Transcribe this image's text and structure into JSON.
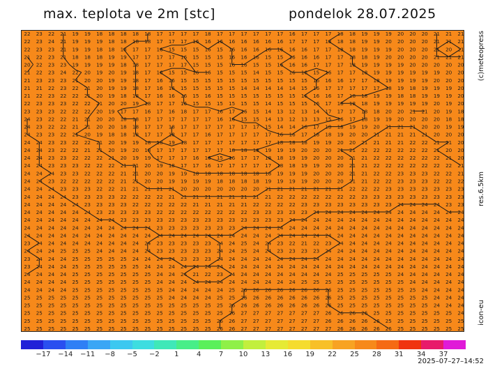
{
  "header": {
    "title": "max. teplota ve 2m [stc]",
    "date": "pondelok 28.07.2025"
  },
  "side_labels": {
    "copyright": "(c)meteopress",
    "resolution": "res.6.5km",
    "model": "icon-eu"
  },
  "timestamp": "2025–07–27–14:52",
  "colorbar": {
    "ticks": [
      "−17",
      "−14",
      "−11",
      "−8",
      "−5",
      "−2",
      "1",
      "4",
      "7",
      "10",
      "13",
      "16",
      "19",
      "22",
      "25",
      "28",
      "31",
      "34",
      "37"
    ],
    "colors": [
      "#2020d8",
      "#2a4ff0",
      "#2f7ff5",
      "#3aa6f5",
      "#3cc8f0",
      "#3ddde0",
      "#3fe8b8",
      "#48ee88",
      "#5af05a",
      "#8ff048",
      "#c2ef3d",
      "#e6ea35",
      "#f5dc2e",
      "#f8c028",
      "#f8a322",
      "#f7891a",
      "#f56a14",
      "#f0330f",
      "#e81a6a",
      "#e01ad8"
    ],
    "min_value": -20,
    "max_value": 40
  },
  "map": {
    "fill_color": "#f7891a",
    "contour_color": "#1a1a1a",
    "grid": [
      "22 23 22 21 19 19 18 18 18 18 18 17 17 17 17 18 17 17 17 17 17 17 16 17 17 17 18 18 19 19 19 20 20 20 21 21 21",
      "22 23 24 21 19 19 19 18 18 18 18 17 17 17 16 16 16 16 16 16 16 16 17 17 17 18 18 18 19 19 20 20 20 20 21 21 21",
      "22 23 23 21 19 19 18 18 18 17 17 16 15 15 15 16 15 16 16 16 16 16 16 16 17 17 18 18 19 19 19 20 20 20 21 20 21",
      "21 22 23 21 18 18 18 19 19 17 17 17 17 16 15 15 15 16 16 16 15 15 16 16 16 17 17 18 18 19 20 20 20 20 21 21 21",
      "20 22 23 23 19 19 19 19 18 18 17 17 17 17 15 15 15 16 16 15 15 16 16 16 17 17 17 18 19 19 19 19 20 20 20 20 20",
      "21 22 23 24 22 20 19 20 19 18 17 16 15 15 16 16 15 15 15 14 15 15 16 16 15 16 17 17 18 19 19 19 19 19 19 20 20",
      "21 23 23 23 21 20 20 19 19 18 17 16 16 15 15 15 15 15 15 15 15 15 15 15 16 16 16 17 17 18 19 19 19 19 20 20 20",
      "21 21 22 23 22 21 20 19 19 18 17 16 16 15 15 15 15 15 14 14 14 14 14 15 16 17 17 17 17 17 18 19 18 19 19 19 20",
      "21 22 23 22 22 21 20 19 18 18 17 16 16 16 15 16 15 15 15 15 15 15 15 16 16 16 17 18 18 19 19 18 18 19 19 19 20",
      "22 23 23 23 22 22 21 20 20 19 18 17 17 16 15 15 15 15 15 15 14 15 15 15 16 17 18 18 18 19 19 19 19 19 20 19 20",
      "23 23 23 22 22 22 20 19 17 17 16 17 16 18 17 17 16 17 16 15 14 13 12 13 14 17 17 17 18 18 20 20 21 21 20 19 18",
      "24 23 22 22 21 21 20 20 18 18 17 17 17 17 17 17 16 16 15 15 14 13 12 13 13 15 16 17 18 19 19 20 20 20 20 18 18",
      "24 23 22 22 21 21 20 20 18 18 17 17 18 17 17 17 17 17 17 17 15 14 14 16 17 18 18 19 19 20 21 21 21 20 20 19 19",
      "24 23 23 22 21 20 19 18 18 18 17 17 18 17 17 16 17 17 17 17 17 16 16 17 18 18 19 20 20 21 21 21 21 21 20 20 20",
      "24 24 23 23 22 22 21 20 19 19 18 18 19 18 17 17 17 17 17 17 17 18 18 18 19 19 20 20 21 21 21 21 22 22 21 21 20",
      "24 24 23 22 22 21 21 20 19 20 18 17 17 17 17 17 17 18 18 18 19 19 19 20 20 20 21 21 22 22 22 22 22 22 21 20 20",
      "24 24 23 23 22 22 22 21 20 19 19 17 17 17 16 16 15 16 17 17 18 18 19 19 20 20 20 21 21 22 22 22 22 22 22 21 20",
      "24 24 23 23 23 22 22 22 21 21 20 19 18 17 17 16 17 17 17 17 17 18 18 19 19 20 20 21 21 22 22 22 22 22 22 22 21",
      "24 24 24 23 23 22 22 22 21 21 20 20 19 19 18 18 18 18 18 18 18 19 19 19 20 20 20 21 21 22 22 23 23 23 22 22 21",
      "24 24 23 22 22 22 22 22 21 21 20 20 19 19 19 19 18 18 18 18 19 19 19 19 20 20 20 21 21 22 22 23 23 23 22 22 22",
      "24 24 24 23 23 23 22 22 21 21 21 21 21 20 20 20 20 20 20 20 21 21 21 21 21 21 21 22 22 22 23 23 23 23 23 23 23",
      "24 24 24 24 23 23 23 23 22 22 22 22 21 21 21 21 21 21 21 21 21 22 22 22 22 22 22 22 23 23 23 23 23 23 23 23 23",
      "24 24 24 24 24 23 23 23 23 22 22 22 22 22 21 21 21 21 21 22 22 22 22 23 23 23 23 23 23 23 23 24 24 24 24 23 23",
      "24 24 24 24 24 24 23 23 23 23 23 22 22 22 22 22 22 22 22 23 23 23 23 23 24 24 24 24 24 24 24 24 24 24 24 24 24",
      "24 24 24 24 24 24 24 24 23 23 23 23 23 23 23 23 23 23 23 23 23 23 24 24 24 24 24 24 24 24 24 24 24 24 24 24 24",
      "24 24 24 24 24 24 24 24 24 24 24 23 23 23 23 23 23 23 24 24 24 24 24 24 24 24 24 24 24 24 24 24 24 24 24 24 24",
      "24 24 24 24 24 24 24 24 24 24 24 24 24 24 24 24 24 24 24 24 24 24 24 24 24 24 24 24 24 24 24 24 24 24 24 24 24",
      "23 24 24 24 24 24 24 24 24 24 24 23 23 23 23 23 24 24 25 24 24 23 22 21 22 23 24 24 24 24 24 24 24 24 24 24 24",
      "24 24 24 25 25 25 24 24 24 24 24 23 23 23 23 23 24 24 25 24 24 23 23 23 23 24 24 24 24 24 24 24 24 24 24 24 24",
      "23 24 24 24 25 25 25 25 25 24 24 24 24 23 23 23 24 24 24 24 24 24 24 24 24 24 24 24 24 24 24 24 24 24 24 24 24",
      "23 24 24 24 25 25 25 25 25 25 24 24 24 24 24 24 24 24 24 24 24 24 24 24 24 24 24 24 24 24 24 24 24 24 24 24 24",
      "24 24 24 24 25 25 25 25 25 25 25 24 24 24 21 22 23 24 24 24 24 24 24 24 24 24 25 25 25 25 25 24 24 24 24 24 24",
      "24 24 24 24 25 25 25 25 25 25 25 24 24 24 24 24 24 24 24 24 24 24 24 25 25 25 25 25 25 25 25 25 24 24 24 24 24",
      "24 24 24 24 25 25 25 25 25 25 25 25 24 24 24 24 24 25 26 26 26 26 26 26 26 26 25 25 25 25 25 25 25 24 24 24 24",
      "25 25 25 25 25 25 25 25 25 25 25 25 24 24 24 24 25 25 26 26 26 26 26 26 26 26 25 25 25 25 25 25 25 25 24 24 24",
      "25 25 25 25 25 25 25 25 25 25 25 25 25 25 25 25 25 26 26 26 26 26 26 26 26 26 25 25 25 25 25 25 25 25 24 24 24",
      "25 25 25 25 25 25 25 25 25 25 25 25 25 25 25 25 25 26 27 27 27 27 27 27 27 26 26 26 26 25 25 25 25 25 25 25 24",
      "25 25 25 25 25 25 25 25 25 25 25 25 25 25 25 25 26 26 27 27 27 27 27 27 27 26 26 26 26 26 25 25 25 25 25 25 25",
      "25 25 25 25 25 25 25 25 25 25 25 25 25 25 25 25 26 26 27 27 27 27 27 27 27 27 26 26 26 26 26 25 25 25 25 25 25"
    ]
  }
}
